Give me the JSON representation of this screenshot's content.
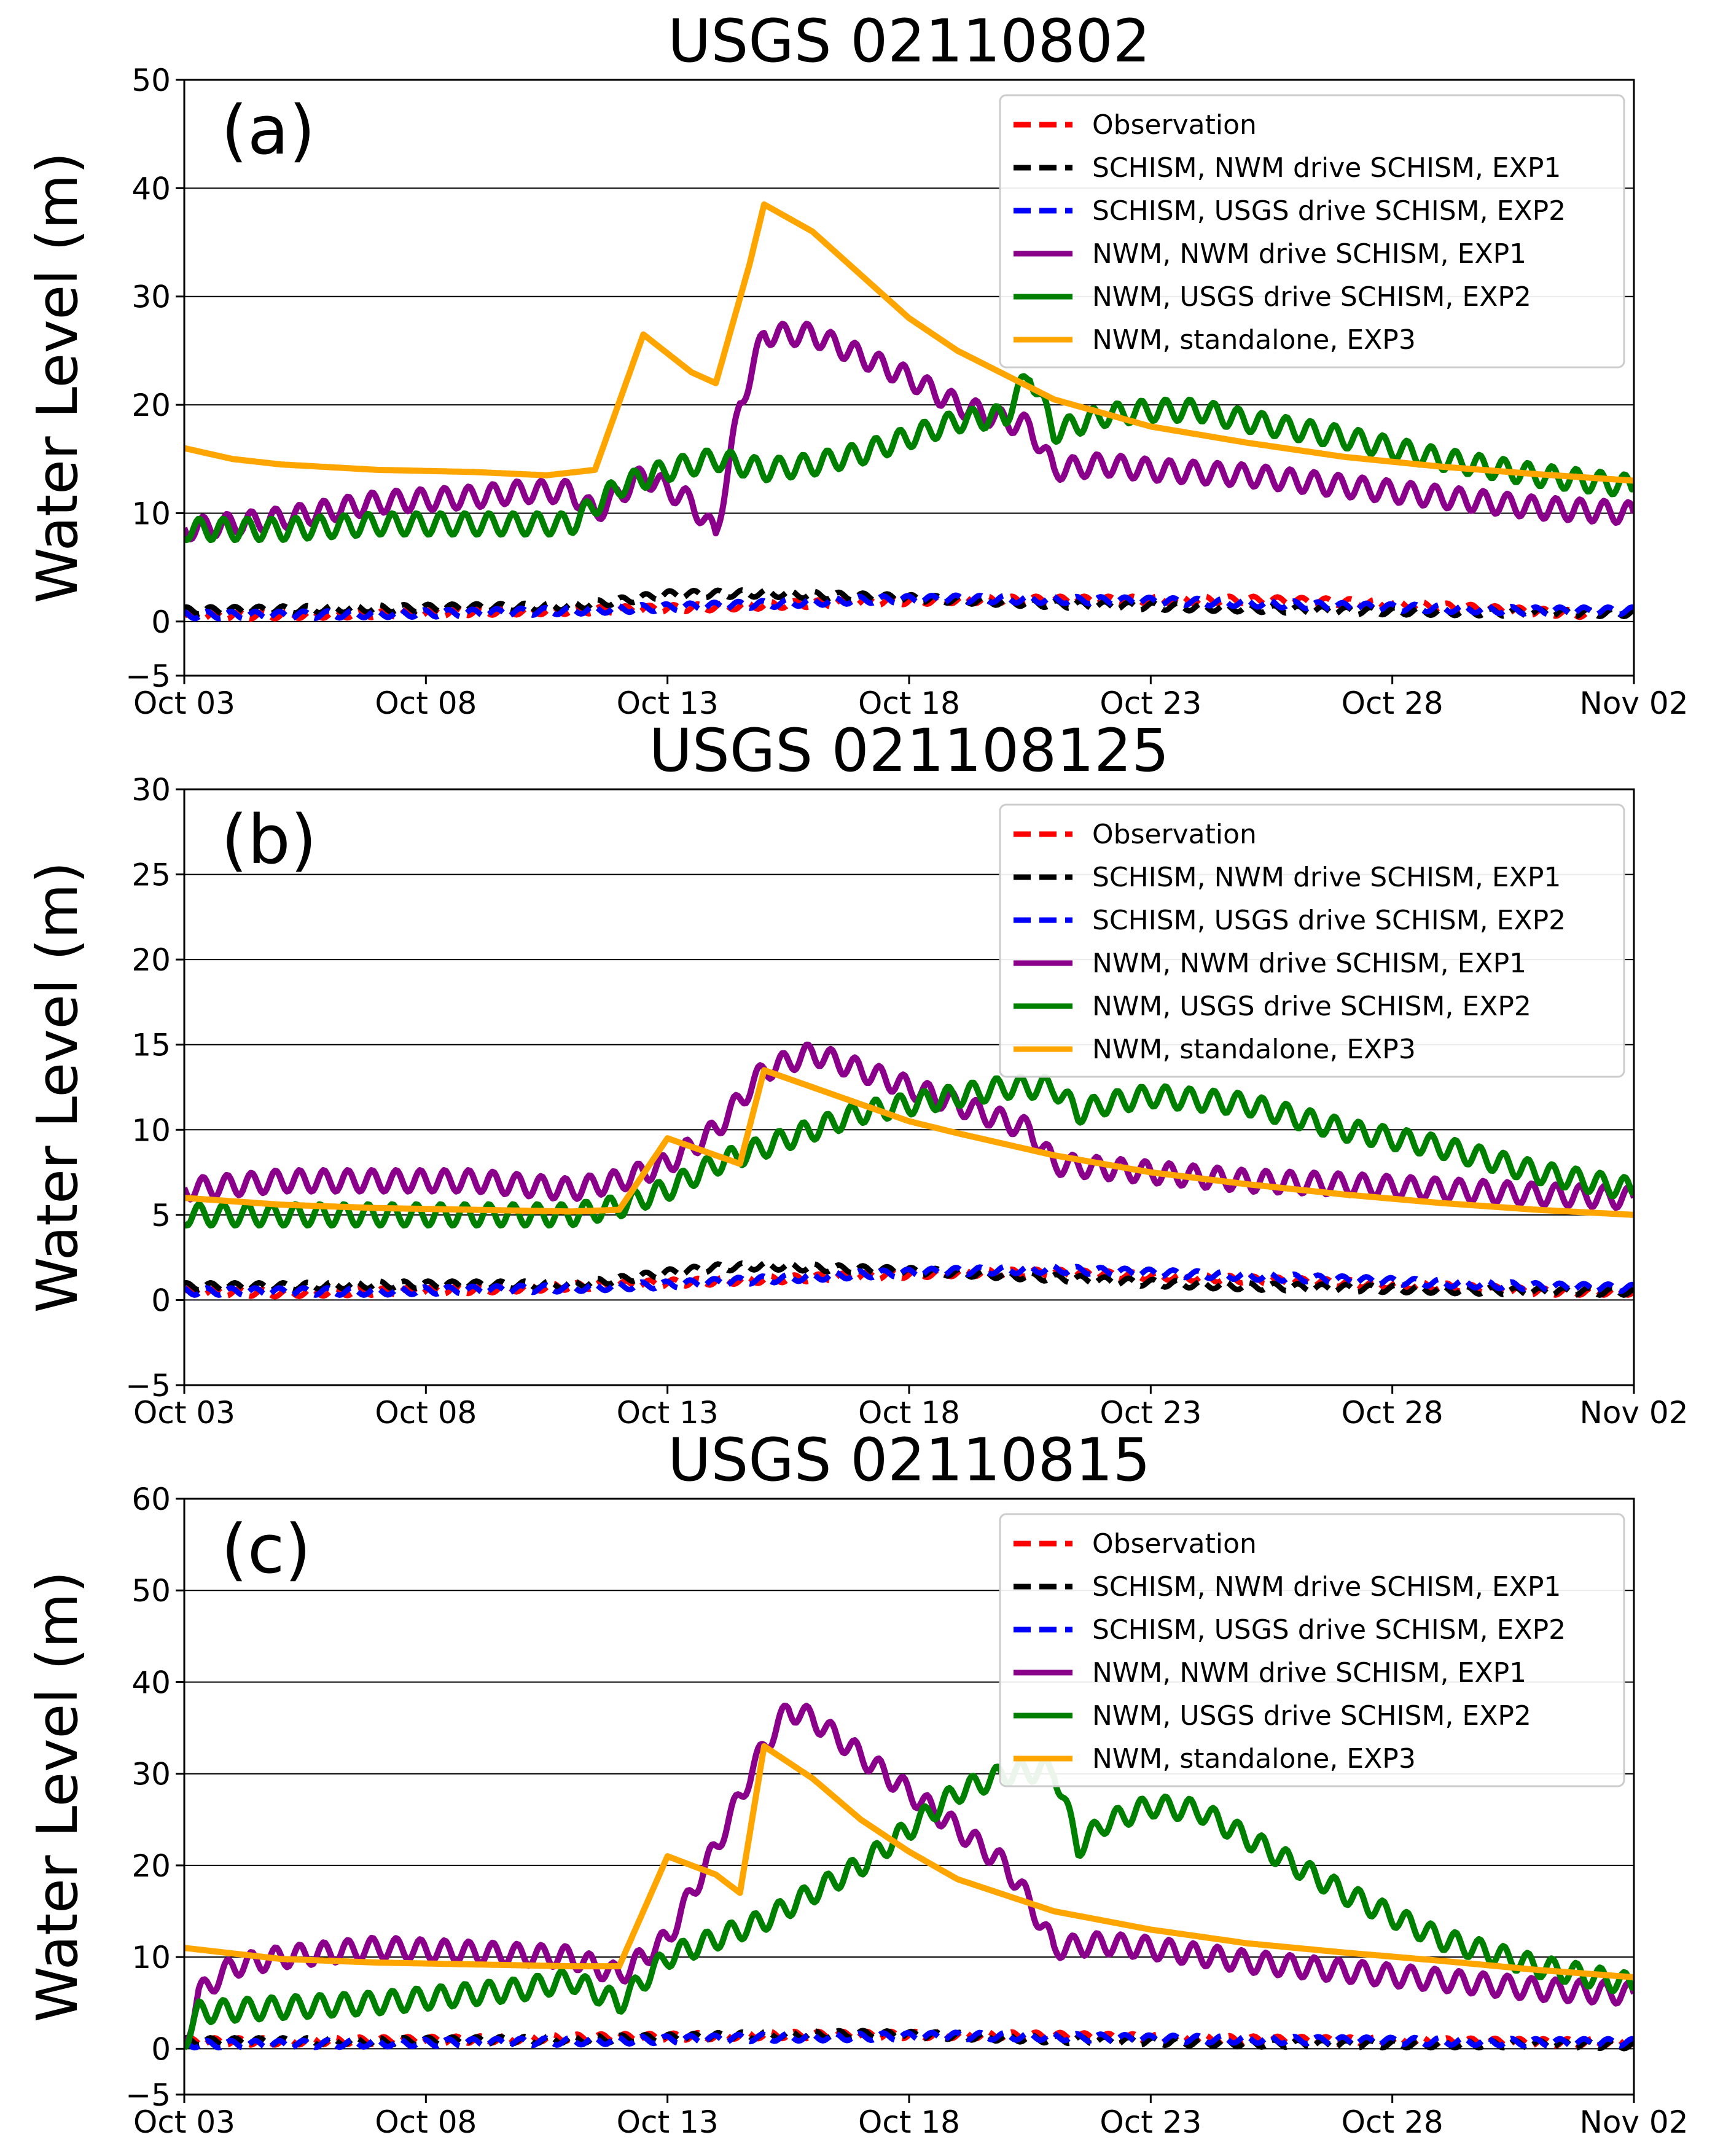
{
  "figure": {
    "ylabel": "Water Level (m)",
    "xtick_labels": [
      "Oct 03",
      "Oct 08",
      "Oct 13",
      "Oct 18",
      "Oct 23",
      "Oct 28",
      "Nov 02"
    ],
    "legend": [
      {
        "label": "Observation",
        "color": "#ff0000",
        "dashed": true
      },
      {
        "label": "SCHISM, NWM drive SCHISM, EXP1",
        "color": "#000000",
        "dashed": true
      },
      {
        "label": "SCHISM, USGS drive SCHISM, EXP2",
        "color": "#0000ff",
        "dashed": true
      },
      {
        "label": "NWM, NWM drive SCHISM, EXP1",
        "color": "#8b008b",
        "dashed": false
      },
      {
        "label": "NWM, USGS drive SCHISM, EXP2",
        "color": "#008000",
        "dashed": false
      },
      {
        "label": "NWM, standalone, EXP3",
        "color": "#ffa500",
        "dashed": false
      }
    ]
  },
  "chart_data": [
    {
      "type": "line",
      "panel": "(a)",
      "title": "USGS 02110802",
      "xlabel": "",
      "ylabel": "Water Level (m)",
      "xlim": [
        0,
        30
      ],
      "ylim": [
        -5,
        50
      ],
      "yticks": [
        -5,
        0,
        10,
        20,
        30,
        40,
        50
      ],
      "x_unit": "days since Oct 03",
      "series": [
        {
          "name": "Observation",
          "x": [
            0,
            2,
            4,
            6,
            8,
            10,
            12,
            14,
            16,
            18,
            20,
            22,
            24,
            26,
            28,
            29
          ],
          "y": [
            0.5,
            0.6,
            0.7,
            0.9,
            1.0,
            1.2,
            1.5,
            1.8,
            2.0,
            2.0,
            2.0,
            2.0,
            1.8,
            1.4,
            0.9,
            0.7
          ]
        },
        {
          "name": "SCHISM, NWM drive SCHISM, EXP1",
          "x": [
            0,
            2,
            4,
            6,
            8,
            9,
            10,
            12,
            14,
            16,
            18,
            20,
            22,
            24,
            26,
            28,
            30
          ],
          "y": [
            1.0,
            1.1,
            1.2,
            1.3,
            1.4,
            1.9,
            2.5,
            2.6,
            2.3,
            2.0,
            1.6,
            1.4,
            1.2,
            1.0,
            0.9,
            0.8,
            0.8
          ]
        },
        {
          "name": "SCHISM, USGS drive SCHISM, EXP2",
          "x": [
            0,
            2,
            4,
            6,
            8,
            10,
            12,
            14,
            16,
            18,
            20,
            22,
            24,
            26,
            28,
            30
          ],
          "y": [
            0.6,
            0.6,
            0.7,
            0.8,
            1.0,
            1.3,
            1.6,
            2.0,
            2.1,
            2.0,
            1.9,
            1.7,
            1.4,
            1.2,
            1.0,
            1.0
          ]
        },
        {
          "name": "NWM, NWM drive SCHISM, EXP1",
          "x": [
            0,
            2,
            4,
            6,
            7,
            8,
            8.5,
            9.5,
            10.5,
            11,
            11.5,
            12,
            13,
            14,
            15,
            16,
            17,
            17.5,
            18,
            19,
            20,
            22,
            24,
            26,
            28,
            30
          ],
          "y": [
            8.5,
            9.5,
            11.0,
            11.5,
            12.0,
            12.0,
            10.0,
            13.5,
            11.0,
            8.0,
            20.0,
            26.5,
            26.5,
            24.5,
            22.5,
            20.0,
            18.5,
            18.0,
            14.0,
            14.5,
            14.0,
            13.5,
            12.5,
            11.5,
            10.5,
            10.0
          ]
        },
        {
          "name": "NWM, USGS drive SCHISM, EXP2",
          "x": [
            0,
            2,
            4,
            6,
            8,
            9,
            10,
            11,
            12,
            13,
            14,
            15,
            16,
            17,
            17.5,
            18,
            19,
            20,
            21,
            22,
            24,
            26,
            28,
            30
          ],
          "y": [
            8.5,
            8.5,
            9.0,
            9.0,
            9.0,
            12.5,
            14.0,
            15.0,
            14.0,
            14.5,
            15.5,
            17.0,
            18.5,
            19.0,
            23.0,
            17.5,
            19.0,
            19.5,
            19.5,
            18.5,
            17.0,
            15.0,
            13.5,
            12.5
          ]
        },
        {
          "name": "NWM, standalone, EXP3",
          "x": [
            0,
            1,
            2,
            4,
            6,
            7.5,
            8.5,
            9.5,
            10.5,
            11,
            11.7,
            12,
            13,
            14,
            15,
            16,
            18,
            20,
            22,
            24,
            26,
            28,
            30
          ],
          "y": [
            16.0,
            15.0,
            14.5,
            14.0,
            13.8,
            13.5,
            14.0,
            26.5,
            23.0,
            22.0,
            33.0,
            38.5,
            36.0,
            32.0,
            28.0,
            25.0,
            20.5,
            18.0,
            16.5,
            15.2,
            14.3,
            13.6,
            13.0
          ]
        }
      ]
    },
    {
      "type": "line",
      "panel": "(b)",
      "title": "USGS 021108125",
      "xlabel": "",
      "ylabel": "Water Level (m)",
      "xlim": [
        0,
        30
      ],
      "ylim": [
        -5,
        30
      ],
      "yticks": [
        -5,
        0,
        5,
        10,
        15,
        20,
        25,
        30
      ],
      "x_unit": "days since Oct 03",
      "series": [
        {
          "name": "Observation",
          "x": [
            0,
            2,
            4,
            6,
            8,
            10,
            12,
            14,
            16,
            18,
            20,
            22,
            24,
            26,
            28,
            30
          ],
          "y": [
            0.5,
            0.4,
            0.5,
            0.6,
            0.8,
            1.0,
            1.2,
            1.4,
            1.6,
            1.6,
            1.4,
            1.2,
            1.0,
            0.8,
            0.5,
            0.5
          ]
        },
        {
          "name": "SCHISM, NWM drive SCHISM, EXP1",
          "x": [
            0,
            2,
            4,
            6,
            8,
            9,
            10,
            11,
            12,
            14,
            16,
            18,
            20,
            22,
            24,
            26,
            28,
            30
          ],
          "y": [
            0.8,
            0.8,
            0.9,
            0.9,
            0.9,
            1.2,
            1.6,
            1.9,
            2.0,
            1.8,
            1.6,
            1.3,
            1.0,
            0.8,
            0.7,
            0.6,
            0.5,
            0.5
          ]
        },
        {
          "name": "SCHISM, USGS drive SCHISM, EXP2",
          "x": [
            0,
            2,
            4,
            6,
            8,
            10,
            12,
            14,
            16,
            18,
            20,
            22,
            24,
            26,
            28,
            30
          ],
          "y": [
            0.5,
            0.5,
            0.5,
            0.6,
            0.7,
            0.9,
            1.2,
            1.5,
            1.7,
            1.8,
            1.6,
            1.4,
            1.2,
            1.0,
            0.8,
            0.7
          ]
        },
        {
          "name": "NWM, NWM drive SCHISM, EXP1",
          "x": [
            0,
            2,
            4,
            6,
            8,
            9,
            10,
            11,
            12,
            13,
            14,
            15,
            16,
            17,
            17.5,
            18,
            20,
            22,
            24,
            26,
            28,
            30
          ],
          "y": [
            6.5,
            7.0,
            7.0,
            7.0,
            6.5,
            7.0,
            8.0,
            10.0,
            13.5,
            14.5,
            13.5,
            12.5,
            11.5,
            10.5,
            10.0,
            8.0,
            7.5,
            7.0,
            6.8,
            6.5,
            6.2,
            6.0
          ]
        },
        {
          "name": "NWM, USGS drive SCHISM, EXP2",
          "x": [
            0,
            2,
            4,
            6,
            8,
            9,
            10,
            11,
            12,
            13,
            14,
            15,
            16,
            17,
            18,
            18.5,
            19,
            20,
            22,
            24,
            26,
            28,
            30
          ],
          "y": [
            5.0,
            5.0,
            5.0,
            5.0,
            5.0,
            5.5,
            6.5,
            8.0,
            9.0,
            10.0,
            11.0,
            11.5,
            12.0,
            12.5,
            12.5,
            11.0,
            11.5,
            12.0,
            11.5,
            10.0,
            9.0,
            7.5,
            6.5
          ]
        },
        {
          "name": "NWM, standalone, EXP3",
          "x": [
            0,
            2,
            4,
            6,
            8,
            9,
            10,
            11,
            11.5,
            12,
            13,
            14,
            15,
            16,
            18,
            20,
            22,
            24,
            26,
            28,
            30
          ],
          "y": [
            6.0,
            5.6,
            5.4,
            5.3,
            5.2,
            5.3,
            9.5,
            8.5,
            8.0,
            13.5,
            12.5,
            11.5,
            10.5,
            9.8,
            8.5,
            7.5,
            6.8,
            6.2,
            5.7,
            5.3,
            5.0
          ]
        }
      ]
    },
    {
      "type": "line",
      "panel": "(c)",
      "title": "USGS 02110815",
      "xlabel": "",
      "ylabel": "Water Level (m)",
      "xlim": [
        0,
        30
      ],
      "ylim": [
        -5,
        60
      ],
      "yticks": [
        -5,
        0,
        10,
        20,
        30,
        40,
        50,
        60
      ],
      "x_unit": "days since Oct 03",
      "series": [
        {
          "name": "Observation",
          "x": [
            0,
            2,
            4,
            6,
            8,
            10,
            12,
            14,
            16,
            18,
            20,
            22,
            24,
            26,
            28,
            30
          ],
          "y": [
            0.8,
            0.8,
            0.9,
            1.0,
            1.2,
            1.3,
            1.5,
            1.5,
            1.5,
            1.4,
            1.2,
            1.0,
            0.9,
            0.8,
            0.7,
            0.7
          ]
        },
        {
          "name": "SCHISM, NWM drive SCHISM, EXP1",
          "x": [
            0,
            2,
            4,
            6,
            8,
            10,
            12,
            14,
            16,
            18,
            20,
            22,
            24,
            26,
            28,
            30
          ],
          "y": [
            0.8,
            0.8,
            0.8,
            0.9,
            1.0,
            1.2,
            1.5,
            1.6,
            1.4,
            1.0,
            0.8,
            0.6,
            0.5,
            0.5,
            0.5,
            0.4
          ]
        },
        {
          "name": "SCHISM, USGS drive SCHISM, EXP2",
          "x": [
            0,
            2,
            4,
            6,
            8,
            10,
            12,
            14,
            16,
            18,
            20,
            22,
            24,
            26,
            28,
            30
          ],
          "y": [
            0.5,
            0.5,
            0.6,
            0.7,
            0.8,
            1.0,
            1.2,
            1.3,
            1.4,
            1.3,
            1.1,
            1.0,
            0.9,
            0.8,
            0.7,
            0.7
          ]
        },
        {
          "name": "NWM, NWM drive SCHISM, EXP1",
          "x": [
            0,
            0.3,
            1,
            2,
            4,
            6,
            8,
            9,
            10,
            11,
            12,
            12.5,
            13,
            14,
            15,
            16,
            17,
            17.5,
            18,
            19,
            20,
            22,
            24,
            26,
            28,
            30
          ],
          "y": [
            0.5,
            6.0,
            9.0,
            10.0,
            11.0,
            10.5,
            10.0,
            8.0,
            12.0,
            22.0,
            33.0,
            37.0,
            36.0,
            32.0,
            28.0,
            24.0,
            20.0,
            16.0,
            11.0,
            11.5,
            11.0,
            9.5,
            8.5,
            7.5,
            6.5,
            6.0
          ]
        },
        {
          "name": "NWM, USGS drive SCHISM, EXP2",
          "x": [
            0,
            0.3,
            2,
            4,
            6,
            7,
            8,
            9,
            10,
            11,
            12,
            13,
            14,
            15,
            16,
            17,
            18,
            18.5,
            19,
            20,
            21,
            22,
            24,
            26,
            28,
            30
          ],
          "y": [
            1.0,
            4.0,
            4.5,
            5.0,
            6.0,
            6.5,
            7.5,
            5.0,
            10.0,
            12.0,
            14.0,
            17.0,
            20.0,
            24.0,
            28.0,
            30.0,
            30.5,
            22.0,
            24.5,
            26.5,
            26.0,
            23.0,
            17.0,
            12.0,
            9.0,
            7.0
          ]
        },
        {
          "name": "NWM, standalone, EXP3",
          "x": [
            0,
            2,
            4,
            6,
            8,
            9,
            10,
            11,
            11.5,
            12,
            13,
            14,
            15,
            16,
            18,
            20,
            22,
            24,
            26,
            28,
            30
          ],
          "y": [
            11.0,
            9.8,
            9.4,
            9.2,
            9.0,
            9.0,
            21.0,
            19.0,
            17.0,
            33.0,
            29.5,
            25.0,
            21.5,
            18.5,
            15.0,
            13.0,
            11.5,
            10.5,
            9.6,
            8.6,
            7.8
          ]
        }
      ]
    }
  ]
}
